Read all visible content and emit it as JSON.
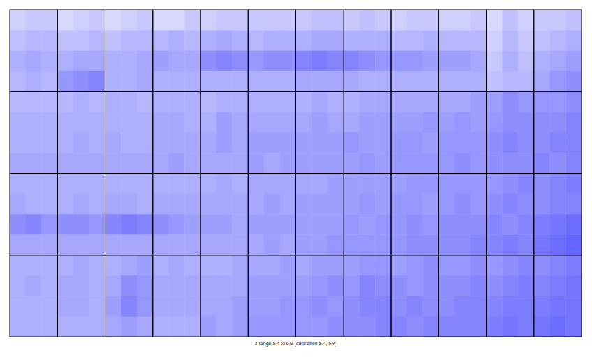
{
  "chart_data": {
    "type": "heatmap",
    "caption": "z-range 5.4 to 6.9 (saturation 5.4, 6.9)",
    "zlim": [
      5.4,
      6.9
    ],
    "saturation": [
      5.4,
      6.9
    ],
    "tick_labels": false,
    "z": [
      [
        [
          [
            5.65,
            5.7,
            5.7
          ],
          [
            5.75,
            5.8,
            5.8
          ],
          [
            5.85,
            5.9,
            5.85
          ],
          [
            5.8,
            5.85,
            5.8
          ]
        ],
        [
          [
            5.6,
            5.65,
            5.7
          ],
          [
            5.75,
            5.75,
            5.8
          ],
          [
            5.85,
            5.9,
            5.9
          ],
          [
            6.0,
            6.05,
            6.1
          ]
        ],
        [
          [
            5.6,
            5.65,
            5.7
          ],
          [
            5.75,
            5.8,
            5.8
          ],
          [
            5.85,
            5.85,
            5.9
          ],
          [
            5.85,
            5.85,
            5.9
          ]
        ],
        [
          [
            5.6,
            5.6,
            5.7
          ],
          [
            5.8,
            5.85,
            5.8
          ],
          [
            5.95,
            5.9,
            5.9
          ],
          [
            5.85,
            5.85,
            5.85
          ]
        ],
        [
          [
            5.65,
            5.7,
            5.7
          ],
          [
            5.85,
            5.9,
            5.85
          ],
          [
            6.05,
            6.1,
            6.05
          ],
          [
            5.85,
            5.85,
            5.85
          ]
        ],
        [
          [
            5.7,
            5.7,
            5.7
          ],
          [
            5.8,
            5.85,
            5.85
          ],
          [
            6.0,
            6.05,
            6.05
          ],
          [
            5.85,
            5.85,
            5.85
          ]
        ],
        [
          [
            5.7,
            5.75,
            5.75
          ],
          [
            5.85,
            5.9,
            5.9
          ],
          [
            6.1,
            6.15,
            6.1
          ],
          [
            5.9,
            5.9,
            5.9
          ]
        ],
        [
          [
            5.7,
            5.75,
            5.7
          ],
          [
            5.85,
            5.85,
            5.85
          ],
          [
            6.1,
            6.05,
            6.0
          ],
          [
            5.9,
            5.85,
            5.85
          ]
        ],
        [
          [
            5.65,
            5.7,
            5.7
          ],
          [
            5.8,
            5.8,
            5.85
          ],
          [
            6.0,
            6.0,
            5.95
          ],
          [
            5.85,
            5.85,
            5.85
          ]
        ],
        [
          [
            5.65,
            5.65,
            5.7
          ],
          [
            5.8,
            5.8,
            5.8
          ],
          [
            5.95,
            5.95,
            5.9
          ],
          [
            5.85,
            5.85,
            5.85
          ]
        ],
        [
          [
            5.6,
            5.75,
            5.65
          ],
          [
            5.65,
            5.8,
            5.7
          ],
          [
            5.7,
            5.85,
            5.75
          ],
          [
            5.75,
            5.8,
            5.8
          ]
        ],
        [
          [
            5.7,
            5.7,
            5.75
          ],
          [
            5.75,
            5.8,
            5.85
          ],
          [
            5.85,
            5.9,
            5.95
          ],
          [
            5.9,
            6.0,
            6.05
          ]
        ]
      ],
      [
        [
          [
            5.8,
            5.8,
            5.8
          ],
          [
            5.85,
            5.85,
            5.85
          ],
          [
            5.85,
            5.85,
            5.85
          ],
          [
            5.9,
            5.9,
            5.9
          ]
        ],
        [
          [
            5.8,
            5.85,
            5.8
          ],
          [
            5.85,
            5.85,
            5.85
          ],
          [
            5.85,
            5.9,
            5.85
          ],
          [
            5.9,
            5.9,
            5.9
          ]
        ],
        [
          [
            5.85,
            5.85,
            5.8
          ],
          [
            5.85,
            5.85,
            5.85
          ],
          [
            5.9,
            5.85,
            5.85
          ],
          [
            5.9,
            5.9,
            5.9
          ]
        ],
        [
          [
            5.85,
            5.85,
            5.85
          ],
          [
            5.9,
            5.9,
            5.85
          ],
          [
            5.9,
            5.9,
            5.9
          ],
          [
            5.9,
            5.95,
            5.9
          ]
        ],
        [
          [
            5.8,
            5.85,
            5.85
          ],
          [
            5.85,
            5.95,
            5.9
          ],
          [
            5.9,
            5.95,
            5.9
          ],
          [
            5.9,
            5.9,
            5.9
          ]
        ],
        [
          [
            5.85,
            5.85,
            5.85
          ],
          [
            5.9,
            5.9,
            5.9
          ],
          [
            5.95,
            5.95,
            5.95
          ],
          [
            5.95,
            5.9,
            5.95
          ]
        ],
        [
          [
            5.85,
            5.9,
            5.85
          ],
          [
            5.9,
            5.95,
            5.9
          ],
          [
            5.95,
            5.95,
            5.95
          ],
          [
            5.95,
            5.95,
            5.95
          ]
        ],
        [
          [
            5.85,
            5.9,
            5.9
          ],
          [
            5.9,
            5.95,
            5.95
          ],
          [
            6.0,
            5.95,
            5.95
          ],
          [
            5.95,
            6.0,
            5.95
          ]
        ],
        [
          [
            5.9,
            5.9,
            5.9
          ],
          [
            5.95,
            5.95,
            6.0
          ],
          [
            6.0,
            6.0,
            5.95
          ],
          [
            6.0,
            6.0,
            6.0
          ]
        ],
        [
          [
            5.9,
            5.9,
            5.95
          ],
          [
            5.95,
            6.0,
            5.95
          ],
          [
            6.0,
            6.0,
            6.0
          ],
          [
            6.0,
            6.05,
            6.0
          ]
        ],
        [
          [
            5.95,
            6.05,
            6.0
          ],
          [
            6.0,
            6.05,
            6.05
          ],
          [
            6.05,
            6.1,
            6.05
          ],
          [
            6.05,
            6.05,
            6.05
          ]
        ],
        [
          [
            6.0,
            6.0,
            6.05
          ],
          [
            6.05,
            6.05,
            6.1
          ],
          [
            6.05,
            6.1,
            6.1
          ],
          [
            6.1,
            6.05,
            6.1
          ]
        ]
      ],
      [
        [
          [
            5.85,
            5.85,
            5.85
          ],
          [
            5.9,
            5.85,
            5.85
          ],
          [
            6.05,
            6.1,
            6.0
          ],
          [
            5.9,
            5.9,
            5.9
          ]
        ],
        [
          [
            5.85,
            5.85,
            5.85
          ],
          [
            5.85,
            5.9,
            5.85
          ],
          [
            6.05,
            6.05,
            6.0
          ],
          [
            5.9,
            5.9,
            5.9
          ]
        ],
        [
          [
            5.85,
            5.85,
            5.85
          ],
          [
            5.9,
            5.9,
            5.85
          ],
          [
            6.1,
            6.15,
            6.1
          ],
          [
            5.9,
            5.9,
            5.9
          ]
        ],
        [
          [
            5.85,
            5.85,
            5.85
          ],
          [
            5.9,
            5.9,
            5.9
          ],
          [
            6.05,
            6.0,
            5.95
          ],
          [
            5.9,
            5.9,
            5.9
          ]
        ],
        [
          [
            5.85,
            5.9,
            5.85
          ],
          [
            5.9,
            5.9,
            5.9
          ],
          [
            5.95,
            5.95,
            5.9
          ],
          [
            5.9,
            5.9,
            5.9
          ]
        ],
        [
          [
            5.9,
            5.9,
            5.9
          ],
          [
            5.9,
            5.95,
            5.9
          ],
          [
            5.95,
            5.95,
            5.95
          ],
          [
            5.9,
            5.95,
            5.9
          ]
        ],
        [
          [
            5.9,
            5.9,
            5.95
          ],
          [
            5.95,
            5.95,
            5.95
          ],
          [
            5.95,
            5.95,
            5.95
          ],
          [
            5.95,
            5.95,
            6.0
          ]
        ],
        [
          [
            5.95,
            5.95,
            5.95
          ],
          [
            5.95,
            6.0,
            5.95
          ],
          [
            6.0,
            5.95,
            6.0
          ],
          [
            6.0,
            6.0,
            6.0
          ]
        ],
        [
          [
            5.95,
            6.0,
            6.0
          ],
          [
            6.0,
            6.0,
            5.95
          ],
          [
            6.0,
            6.05,
            6.0
          ],
          [
            6.0,
            6.05,
            6.05
          ]
        ],
        [
          [
            6.0,
            6.0,
            6.0
          ],
          [
            6.0,
            6.05,
            6.0
          ],
          [
            6.05,
            6.05,
            6.05
          ],
          [
            6.05,
            6.05,
            6.1
          ]
        ],
        [
          [
            6.0,
            6.05,
            6.1
          ],
          [
            6.05,
            6.1,
            6.05
          ],
          [
            6.1,
            6.05,
            6.1
          ],
          [
            6.1,
            6.15,
            6.1
          ]
        ],
        [
          [
            6.05,
            6.1,
            6.15
          ],
          [
            6.05,
            6.1,
            6.1
          ],
          [
            6.15,
            6.2,
            6.25
          ],
          [
            6.2,
            6.25,
            6.3
          ]
        ]
      ],
      [
        [
          [
            5.85,
            5.85,
            5.85
          ],
          [
            5.85,
            5.9,
            5.85
          ],
          [
            5.85,
            5.85,
            5.85
          ],
          [
            5.85,
            5.85,
            5.85
          ]
        ],
        [
          [
            5.85,
            5.9,
            5.85
          ],
          [
            5.9,
            5.9,
            5.85
          ],
          [
            5.9,
            5.9,
            5.85
          ],
          [
            5.85,
            5.85,
            5.85
          ]
        ],
        [
          [
            5.85,
            5.9,
            5.95
          ],
          [
            5.9,
            6.05,
            6.0
          ],
          [
            5.95,
            6.1,
            6.0
          ],
          [
            5.9,
            5.95,
            5.9
          ]
        ],
        [
          [
            5.85,
            5.9,
            5.85
          ],
          [
            5.9,
            5.9,
            5.9
          ],
          [
            5.9,
            5.9,
            5.9
          ],
          [
            5.85,
            5.85,
            5.85
          ]
        ],
        [
          [
            5.85,
            5.85,
            5.9
          ],
          [
            5.9,
            5.9,
            5.9
          ],
          [
            5.9,
            5.9,
            5.95
          ],
          [
            5.95,
            5.9,
            5.95
          ]
        ],
        [
          [
            5.9,
            5.9,
            5.95
          ],
          [
            5.95,
            5.95,
            5.95
          ],
          [
            5.95,
            5.95,
            6.0
          ],
          [
            6.0,
            6.0,
            6.0
          ]
        ],
        [
          [
            5.9,
            5.95,
            5.95
          ],
          [
            5.95,
            6.0,
            6.05
          ],
          [
            6.0,
            6.05,
            6.0
          ],
          [
            6.0,
            6.0,
            6.05
          ]
        ],
        [
          [
            5.95,
            6.0,
            6.0
          ],
          [
            6.0,
            6.1,
            6.05
          ],
          [
            6.05,
            6.1,
            6.1
          ],
          [
            6.05,
            6.05,
            6.1
          ]
        ],
        [
          [
            5.95,
            6.0,
            6.05
          ],
          [
            6.05,
            6.0,
            6.05
          ],
          [
            6.05,
            6.1,
            6.05
          ],
          [
            6.1,
            6.05,
            6.1
          ]
        ],
        [
          [
            6.0,
            6.0,
            6.05
          ],
          [
            6.05,
            6.05,
            6.1
          ],
          [
            6.05,
            6.1,
            6.1
          ],
          [
            6.1,
            6.1,
            6.1
          ]
        ],
        [
          [
            6.0,
            6.05,
            6.1
          ],
          [
            6.05,
            6.1,
            6.15
          ],
          [
            6.1,
            6.15,
            6.15
          ],
          [
            6.15,
            6.2,
            6.15
          ]
        ],
        [
          [
            6.05,
            6.1,
            6.15
          ],
          [
            6.1,
            6.15,
            6.2
          ],
          [
            6.15,
            6.2,
            6.2
          ],
          [
            6.2,
            6.25,
            6.2
          ]
        ]
      ]
    ]
  }
}
